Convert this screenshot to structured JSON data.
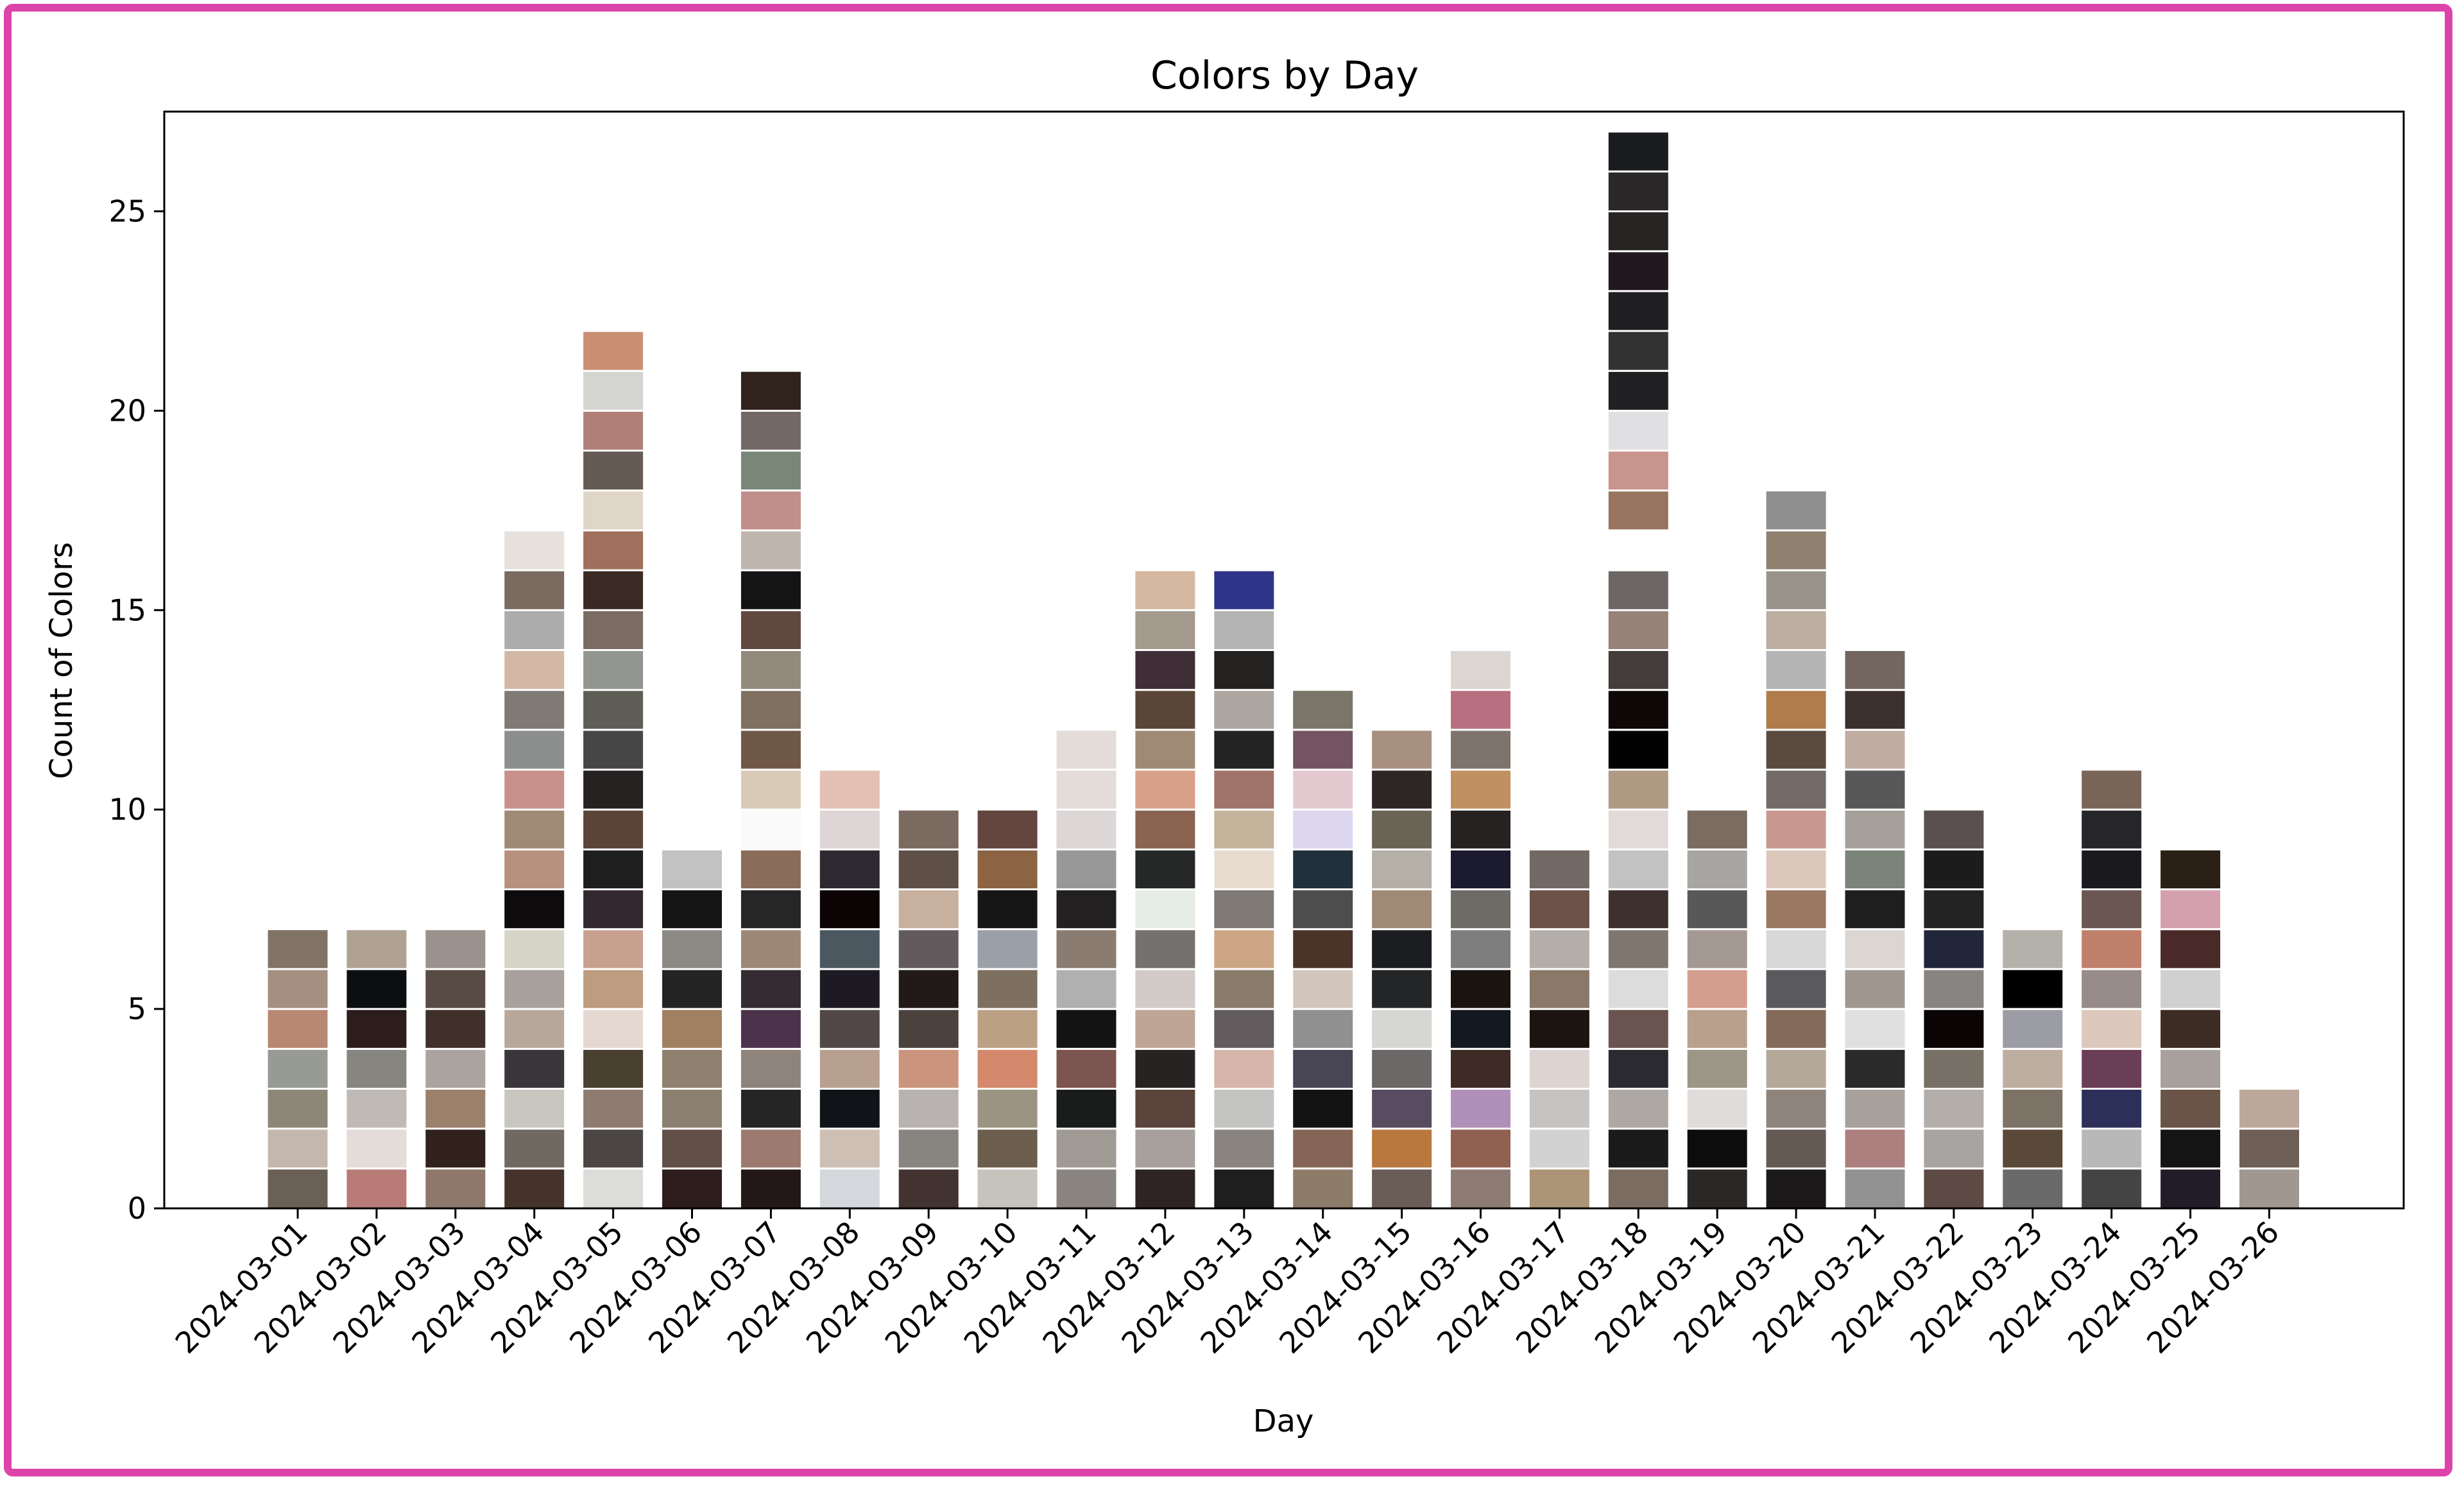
{
  "colors": {
    "frame": "#dd44aa",
    "axis": "#000000",
    "cell_border": "#ffffff"
  },
  "chart_data": {
    "type": "bar",
    "title": "Colors by Day",
    "xlabel": "Day",
    "ylabel": "Count of Colors",
    "ylim": [
      0,
      27.5
    ],
    "yticks": [
      0,
      5,
      10,
      15,
      20,
      25
    ],
    "grid": false,
    "legend": "none",
    "stacked": "one unit cell per color, bottom to top",
    "categories": [
      "2024-03-01",
      "2024-03-02",
      "2024-03-03",
      "2024-03-04",
      "2024-03-05",
      "2024-03-06",
      "2024-03-07",
      "2024-03-08",
      "2024-03-09",
      "2024-03-10",
      "2024-03-11",
      "2024-03-12",
      "2024-03-13",
      "2024-03-14",
      "2024-03-15",
      "2024-03-16",
      "2024-03-17",
      "2024-03-18",
      "2024-03-19",
      "2024-03-20",
      "2024-03-21",
      "2024-03-22",
      "2024-03-23",
      "2024-03-24",
      "2024-03-25",
      "2024-03-26"
    ],
    "values": [
      7,
      7,
      7,
      17,
      22,
      9,
      21,
      11,
      10,
      10,
      12,
      16,
      16,
      13,
      12,
      14,
      9,
      27,
      10,
      18,
      14,
      10,
      7,
      11,
      9,
      3
    ],
    "cell_colors": [
      [
        "#6b6056",
        "#c4b8ae",
        "#8d8778",
        "#989a94",
        "#b88873",
        "#a48f80",
        "#817467"
      ],
      [
        "#b87b77",
        "#e4dcd8",
        "#c0bab6",
        "#878580",
        "#2c1c1c",
        "#0c0f11",
        "#b0a293"
      ],
      [
        "#8e786c",
        "#30211c",
        "#9b806c",
        "#aba3a0",
        "#40302a",
        "#574b43",
        "#9b928d"
      ],
      [
        "#44322b",
        "#6f6962",
        "#c8c6bf",
        "#3a353a",
        "#b8a89c",
        "#a8a09c",
        "#d6d3c7",
        "#0d0b0c",
        "#b89080",
        "#a08a76",
        "#c8908a",
        "#8b8e8c",
        "#807a74",
        "#d4b8a6",
        "#acacac",
        "#7a6a5f",
        "#e6e1dd"
      ],
      [
        "#dcdcd8",
        "#4b4644",
        "#8e7c71",
        "#4a4030",
        "#e4d8d0",
        "#bd9c80",
        "#c8a090",
        "#342830",
        "#1e1e1e",
        "#5a4437",
        "#262222",
        "#464646",
        "#5f5e56",
        "#939690",
        "#7a6c62",
        "#3b2a24",
        "#a0705c",
        "#e0d6c8",
        "#665a54",
        "#b08078",
        "#d4d4d0",
        "#ca9074"
      ],
      [
        "#2c1c1c",
        "#625048",
        "#8b8070",
        "#908070",
        "#a08060",
        "#242424",
        "#8c8884",
        "#151515",
        "#c2c2c2"
      ],
      [
        "#231817",
        "#9c7a70",
        "#252525",
        "#8e847b",
        "#4b344b",
        "#342b33",
        "#9d8878",
        "#262626",
        "#8a6c5a",
        "#fafafa",
        "#d9cab8",
        "#705848",
        "#7f7062",
        "#938a7e",
        "#604840",
        "#141414",
        "#c0b6b0",
        "#c08f8b",
        "#798779",
        "#736964",
        "#30231c"
      ],
      [
        "#d4d8dc",
        "#cdbfb3",
        "#101418",
        "#b8a090",
        "#524848",
        "#1e1a24",
        "#4b5860",
        "#0c0404",
        "#2e2830",
        "#ded6d6",
        "#e4c0b4"
      ],
      [
        "#423330",
        "#888480",
        "#b8b2b1",
        "#ca947d",
        "#4b423e",
        "#211a19",
        "#625a5c",
        "#c8b09e",
        "#5e5046",
        "#7a6a60"
      ],
      [
        "#c6c2bc",
        "#6c5e4c",
        "#9c9482",
        "#d4886c",
        "#bca084",
        "#7e7060",
        "#9ba0a8",
        "#161616",
        "#8c6444",
        "#62463f"
      ],
      [
        "#8a8480",
        "#a09a94",
        "#1a1c1c",
        "#7c5450",
        "#131313",
        "#b0b0b0",
        "#8a7c70",
        "#222020",
        "#989898",
        "#dcd6d6",
        "#e4dcd8",
        "#e4dcd8"
      ],
      [
        "#2e2424",
        "#a8a09c",
        "#5a443b",
        "#262322",
        "#bea596",
        "#d2cbc8",
        "#74716e",
        "#e6ede6",
        "#262828",
        "#8a6450",
        "#d8a088",
        "#a08a76",
        "#5a4638",
        "#402e36",
        "#a49a8e",
        "#d4b8a2"
      ],
      [
        "#1e1e1e",
        "#8a8480",
        "#c4c4c2",
        "#d6b6aa",
        "#625c5e",
        "#8a7c6a",
        "#cca684",
        "#807a76",
        "#e8dcd0",
        "#c4b49c",
        "#a0746a",
        "#242424",
        "#ada5a0",
        "#252321",
        "#b4b4b4",
        "#2e3588"
      ],
      [
        "#8e7c6a",
        "#856656",
        "#131313",
        "#484555",
        "#909090",
        "#d2c6bc",
        "#4a3428",
        "#4d4d4d",
        "#22303c",
        "#dcd6ee",
        "#e4cad0",
        "#745462",
        "#7a766a"
      ],
      [
        "#6a5c56",
        "#b8783e",
        "#5a4c60",
        "#6c6868",
        "#d6d6d2",
        "#232527",
        "#1b1d21",
        "#a08a76",
        "#b4b0a8",
        "#6a6456",
        "#2e2624",
        "#a89080"
      ],
      [
        "#8e7c74",
        "#906050",
        "#b090b8",
        "#3e2b25",
        "#141820",
        "#1a1410",
        "#7e7e7e",
        "#6e6a66",
        "#1c1a2e",
        "#262222",
        "#c09060",
        "#7e746c",
        "#b87080",
        "#dcd6d2"
      ],
      [
        "#ac9476",
        "#d2d2d2",
        "#c6c4c0",
        "#ddd4d2",
        "#1c1410",
        "#8a7868",
        "#b4aeaa",
        "#6c5248",
        "#746864"
      ],
      [
        "#7a6c60",
        "#1a1a1a",
        "#aea8a4",
        "#2a2a30",
        "#6a5450",
        "#dcdcdc",
        "#807670",
        "#3e302e",
        "#c2c2c2",
        "#e0dad8",
        "#b09a84",
        "#020202",
        "#0e0808",
        "#433d3b",
        "#968276",
        "#6c6764",
        "#ffffff",
        "#987460",
        "#c8948c",
        "#e0e0e2",
        "#202022",
        "#323232",
        "#1f1e20",
        "#221820",
        "#282424",
        "#2a2828",
        "#1a1c20"
      ],
      [
        "#2a2826",
        "#0c0c0c",
        "#e0dcda",
        "#9c9686",
        "#b8a08c",
        "#d49e8e",
        "#a49892",
        "#585858",
        "#a8a6a2",
        "#7a6c60"
      ],
      [
        "#1a1818",
        "#665a54",
        "#8e847c",
        "#b4a898",
        "#846a58",
        "#5a5a5e",
        "#d8d8d8",
        "#9a7862",
        "#dcc8ba",
        "#c89890",
        "#746a66",
        "#5a4a40",
        "#b07c4c",
        "#b4b4b4",
        "#bcaea0",
        "#98928a",
        "#8f8070",
        "#8e8e8e"
      ],
      [
        "#929292",
        "#ac807e",
        "#a8a09a",
        "#2a2a2a",
        "#e0e0e0",
        "#a09890",
        "#dcd6d2",
        "#1e1e1e",
        "#7a8478",
        "#a6a09a",
        "#585858",
        "#c0aca0",
        "#3c302c",
        "#72665e"
      ],
      [
        "#5e4a44",
        "#a8a4a2",
        "#b4aeaa",
        "#767066",
        "#0a0404",
        "#888482",
        "#22263a",
        "#232323",
        "#1c1c1c",
        "#5a5050"
      ],
      [
        "#6a6a6a",
        "#5a4838",
        "#7c7266",
        "#beaea0",
        "#9c9ca4",
        "#000000",
        "#b4b0aa"
      ],
      [
        "#444444",
        "#b8b8b8",
        "#2c3058",
        "#6a3e56",
        "#dcc8bc",
        "#988c88",
        "#c0806c",
        "#6a5652",
        "#1a1a1e",
        "#262628",
        "#7a6658"
      ],
      [
        "#221c28",
        "#141414",
        "#6a5448",
        "#a8a09c",
        "#3c2c24",
        "#d0d0d0",
        "#4a2a28",
        "#d4a0b0",
        "#2a2016"
      ],
      [
        "#a09890",
        "#6e6056",
        "#bca89a"
      ]
    ]
  }
}
